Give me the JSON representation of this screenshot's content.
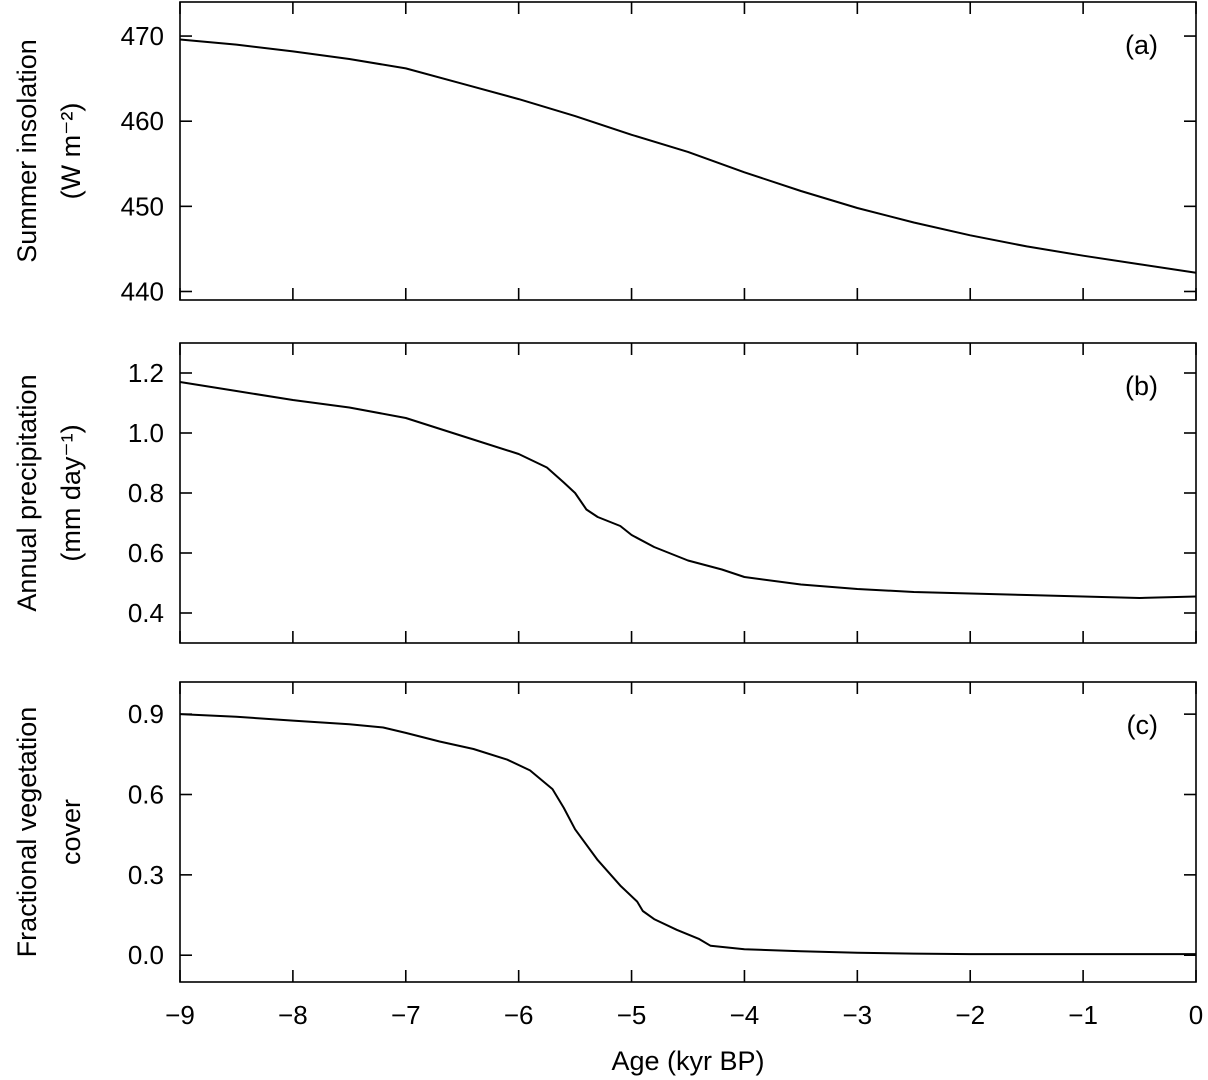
{
  "chart_data": [
    {
      "type": "line",
      "panel_label": "(a)",
      "ylabel_lines": [
        "Summer insolation",
        "(W m⁻²)"
      ],
      "xlim": [
        -9,
        0
      ],
      "ylim": [
        439,
        474
      ],
      "yticks": [
        440,
        450,
        460,
        470
      ],
      "ytick_labels": [
        "440",
        "450",
        "460",
        "470"
      ],
      "series": [
        {
          "x": [
            -9,
            -8.5,
            -8,
            -7.5,
            -7,
            -6.5,
            -6,
            -5.5,
            -5,
            -4.5,
            -4,
            -3.5,
            -3,
            -2.5,
            -2,
            -1.5,
            -1,
            -0.5,
            0
          ],
          "values": [
            469.6,
            469.0,
            468.2,
            467.3,
            466.2,
            464.4,
            462.6,
            460.6,
            458.4,
            456.4,
            454.0,
            451.8,
            449.8,
            448.1,
            446.6,
            445.3,
            444.2,
            443.2,
            442.2
          ]
        }
      ]
    },
    {
      "type": "line",
      "panel_label": "(b)",
      "ylabel_lines": [
        "Annual precipitation",
        "(mm day⁻¹)"
      ],
      "xlim": [
        -9,
        0
      ],
      "ylim": [
        0.3,
        1.3
      ],
      "yticks": [
        0.4,
        0.6,
        0.8,
        1.0,
        1.2
      ],
      "ytick_labels": [
        "0.4",
        "0.6",
        "0.8",
        "1.0",
        "1.2"
      ],
      "series": [
        {
          "x": [
            -9,
            -8.5,
            -8,
            -7.5,
            -7,
            -6.5,
            -6,
            -5.75,
            -5.6,
            -5.5,
            -5.4,
            -5.3,
            -5.1,
            -5.0,
            -4.8,
            -4.5,
            -4.2,
            -4.0,
            -3.5,
            -3.0,
            -2.5,
            -2.0,
            -1.5,
            -1.0,
            -0.5,
            0
          ],
          "values": [
            1.17,
            1.14,
            1.11,
            1.085,
            1.05,
            0.99,
            0.93,
            0.885,
            0.835,
            0.8,
            0.745,
            0.72,
            0.69,
            0.66,
            0.62,
            0.575,
            0.545,
            0.52,
            0.495,
            0.48,
            0.47,
            0.465,
            0.46,
            0.455,
            0.45,
            0.455
          ]
        }
      ]
    },
    {
      "type": "line",
      "panel_label": "(c)",
      "ylabel_lines": [
        "Fractional vegetation",
        "cover"
      ],
      "xlabel": "Age (kyr BP)",
      "xlim": [
        -9,
        0
      ],
      "xticks": [
        -9,
        -8,
        -7,
        -6,
        -5,
        -4,
        -3,
        -2,
        -1,
        0
      ],
      "xtick_labels": [
        "−9",
        "−8",
        "−7",
        "−6",
        "−5",
        "−4",
        "−3",
        "−2",
        "−1",
        "0"
      ],
      "ylim": [
        -0.1,
        1.02
      ],
      "yticks": [
        0.0,
        0.3,
        0.6,
        0.9
      ],
      "ytick_labels": [
        "0.0",
        "0.3",
        "0.6",
        "0.9"
      ],
      "series": [
        {
          "x": [
            -9,
            -8.5,
            -8,
            -7.5,
            -7.2,
            -7,
            -6.7,
            -6.4,
            -6.1,
            -5.9,
            -5.7,
            -5.6,
            -5.5,
            -5.3,
            -5.1,
            -4.95,
            -4.9,
            -4.8,
            -4.6,
            -4.4,
            -4.3,
            -4.0,
            -3.5,
            -3.0,
            -2.5,
            -2.0,
            -1.5,
            -1.0,
            -0.5,
            0
          ],
          "values": [
            0.9,
            0.89,
            0.876,
            0.862,
            0.85,
            0.83,
            0.798,
            0.77,
            0.73,
            0.69,
            0.62,
            0.55,
            0.47,
            0.355,
            0.26,
            0.2,
            0.165,
            0.135,
            0.095,
            0.06,
            0.035,
            0.022,
            0.015,
            0.009,
            0.006,
            0.004,
            0.004,
            0.004,
            0.004,
            0.004
          ]
        }
      ]
    }
  ]
}
